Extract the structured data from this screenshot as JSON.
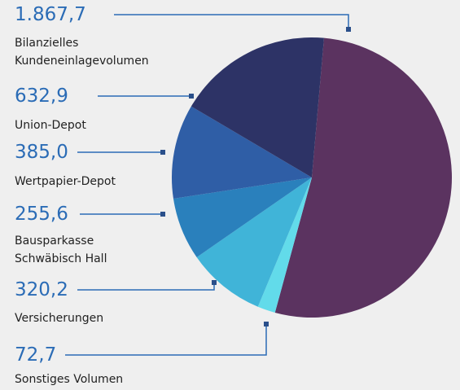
{
  "chart_data": {
    "type": "pie",
    "categories": [
      "Bilanzielles\nKundeneinlagevolumen",
      "Union-Depot",
      "Wertpapier-Depot",
      "Bausparkasse\nSchwäbisch Hall",
      "Versicherungen",
      "Sonstiges Volumen"
    ],
    "values": [
      1867.7,
      632.9,
      385.0,
      255.6,
      320.2,
      72.7
    ],
    "value_labels": [
      "1.867,7",
      "632,9",
      "385,0",
      "255,6",
      "320,2",
      "72,7"
    ],
    "colors": [
      "#5b3360",
      "#2d3366",
      "#2f5ea6",
      "#2a80bc",
      "#40b4d8",
      "#62dbea"
    ]
  }
}
